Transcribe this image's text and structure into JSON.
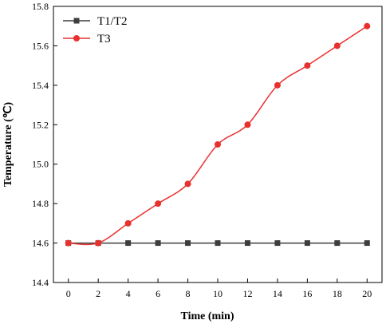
{
  "chart_data": {
    "type": "line",
    "xlabel": "Time (min)",
    "ylabel": "Temperature (℃)",
    "xlim": [
      -1,
      21
    ],
    "ylim": [
      14.4,
      15.8
    ],
    "xticks": [
      0,
      2,
      4,
      6,
      8,
      10,
      12,
      14,
      16,
      18,
      20
    ],
    "yticks": [
      14.4,
      14.6,
      14.8,
      15.0,
      15.2,
      15.4,
      15.6,
      15.8
    ],
    "legend_position": "top-left",
    "grid": false,
    "series": [
      {
        "name": "T1/T2",
        "color": "#3d3d3d",
        "marker": "square",
        "smooth": false,
        "x": [
          0,
          2,
          4,
          6,
          8,
          10,
          12,
          14,
          16,
          18,
          20
        ],
        "y": [
          14.6,
          14.6,
          14.6,
          14.6,
          14.6,
          14.6,
          14.6,
          14.6,
          14.6,
          14.6,
          14.6
        ]
      },
      {
        "name": "T3",
        "color": "#e8312f",
        "marker": "circle",
        "smooth": true,
        "x": [
          0,
          2,
          4,
          6,
          8,
          10,
          12,
          14,
          16,
          18,
          20
        ],
        "y": [
          14.6,
          14.6,
          14.7,
          14.8,
          14.9,
          15.1,
          15.2,
          15.4,
          15.5,
          15.6,
          15.7
        ]
      }
    ]
  }
}
